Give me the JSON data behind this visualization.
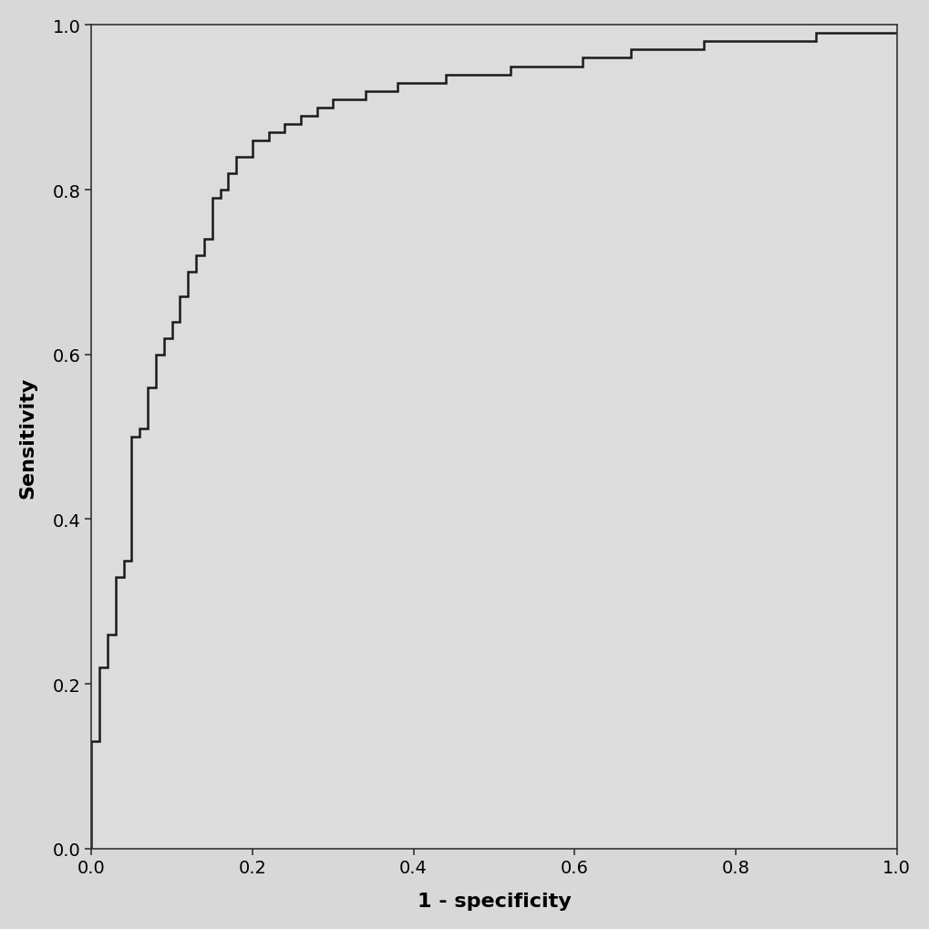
{
  "xlabel": "1 - specificity",
  "ylabel": "Sensitivity",
  "xlim": [
    0.0,
    1.0
  ],
  "ylim": [
    0.0,
    1.0
  ],
  "xticks": [
    0.0,
    0.2,
    0.4,
    0.6,
    0.8,
    1.0
  ],
  "yticks": [
    0.0,
    0.2,
    0.4,
    0.6,
    0.8,
    1.0
  ],
  "line_color": "#1a1a1a",
  "line_width": 1.8,
  "background_color": "#e8e8e8",
  "axes_facecolor": "#dcdcdc",
  "tick_fontsize": 14,
  "label_fontsize": 16,
  "roc_x": [
    0.0,
    0.0,
    0.0,
    0.01,
    0.01,
    0.02,
    0.02,
    0.03,
    0.03,
    0.04,
    0.04,
    0.05,
    0.05,
    0.06,
    0.06,
    0.07,
    0.07,
    0.08,
    0.08,
    0.09,
    0.09,
    0.1,
    0.1,
    0.11,
    0.11,
    0.12,
    0.12,
    0.13,
    0.13,
    0.14,
    0.14,
    0.15,
    0.15,
    0.16,
    0.16,
    0.17,
    0.17,
    0.18,
    0.18,
    0.2,
    0.2,
    0.22,
    0.22,
    0.24,
    0.24,
    0.26,
    0.26,
    0.28,
    0.28,
    0.3,
    0.3,
    0.32,
    0.32,
    0.34,
    0.34,
    0.36,
    0.36,
    0.38,
    0.38,
    0.4,
    0.4,
    0.42,
    0.42,
    0.44,
    0.44,
    0.46,
    0.46,
    0.48,
    0.48,
    0.5,
    0.5,
    0.52,
    0.52,
    0.55,
    0.55,
    0.58,
    0.58,
    0.61,
    0.61,
    0.64,
    0.64,
    0.67,
    0.67,
    0.7,
    0.7,
    0.73,
    0.73,
    0.76,
    0.76,
    0.8,
    0.8,
    0.85,
    0.85,
    0.9,
    0.9,
    0.95,
    0.95,
    1.0
  ],
  "roc_y": [
    0.0,
    0.13,
    0.13,
    0.13,
    0.22,
    0.22,
    0.26,
    0.26,
    0.33,
    0.33,
    0.35,
    0.35,
    0.5,
    0.5,
    0.51,
    0.51,
    0.56,
    0.56,
    0.6,
    0.6,
    0.62,
    0.62,
    0.64,
    0.64,
    0.67,
    0.67,
    0.7,
    0.7,
    0.72,
    0.72,
    0.74,
    0.74,
    0.79,
    0.79,
    0.8,
    0.8,
    0.82,
    0.82,
    0.84,
    0.84,
    0.86,
    0.86,
    0.87,
    0.87,
    0.88,
    0.88,
    0.89,
    0.89,
    0.9,
    0.9,
    0.91,
    0.91,
    0.91,
    0.91,
    0.92,
    0.92,
    0.92,
    0.92,
    0.93,
    0.93,
    0.93,
    0.93,
    0.93,
    0.93,
    0.94,
    0.94,
    0.94,
    0.94,
    0.94,
    0.94,
    0.94,
    0.94,
    0.95,
    0.95,
    0.95,
    0.95,
    0.95,
    0.95,
    0.96,
    0.96,
    0.96,
    0.96,
    0.97,
    0.97,
    0.97,
    0.97,
    0.97,
    0.97,
    0.98,
    0.98,
    0.98,
    0.98,
    0.98,
    0.98,
    0.99,
    0.99,
    0.99,
    0.99
  ]
}
